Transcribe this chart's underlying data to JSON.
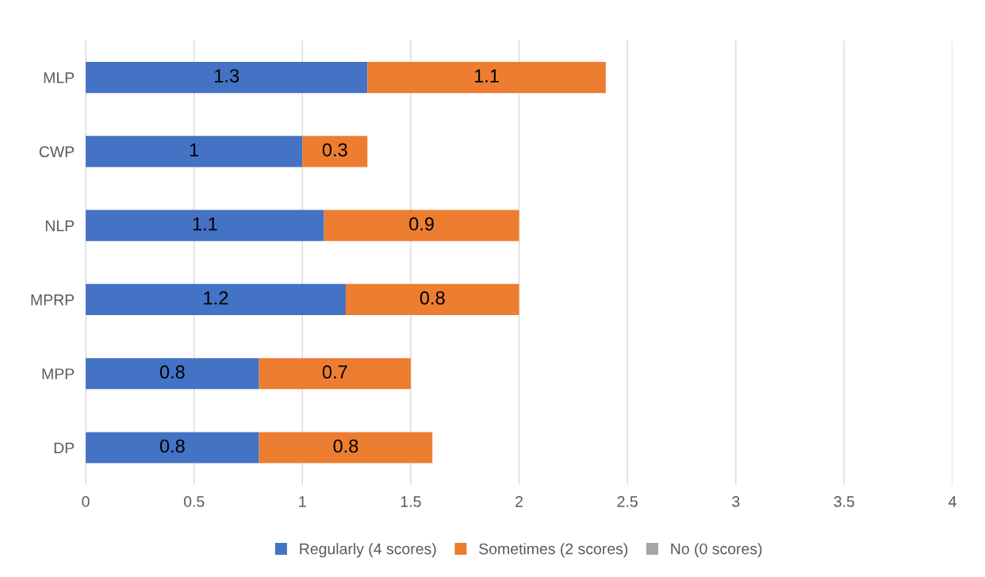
{
  "chart_data": {
    "type": "bar",
    "orientation": "horizontal",
    "stacked": true,
    "categories": [
      "MLP",
      "CWP",
      "NLP",
      "MPRP",
      "MPP",
      "DP"
    ],
    "series": [
      {
        "name": "Regularly (4 scores)",
        "color": "#4472c4",
        "values": [
          1.3,
          1,
          1.1,
          1.2,
          0.8,
          0.8
        ],
        "value_labels": [
          "1.3",
          "1",
          "1.1",
          "1.2",
          "0.8",
          "0.8"
        ]
      },
      {
        "name": "Sometimes (2 scores)",
        "color": "#ed7d31",
        "values": [
          1.1,
          0.3,
          0.9,
          0.8,
          0.7,
          0.8
        ],
        "value_labels": [
          "1.1",
          "0.3",
          "0.9",
          "0.8",
          "0.7",
          "0.8"
        ]
      },
      {
        "name": "No (0 scores)",
        "color": "#a5a5a5",
        "values": [
          0,
          0,
          0,
          0,
          0,
          0
        ],
        "value_labels": [
          null,
          null,
          null,
          null,
          null,
          null
        ]
      }
    ],
    "xlim": [
      0,
      4
    ],
    "xticks": [
      0,
      0.5,
      1,
      1.5,
      2,
      2.5,
      3,
      3.5,
      4
    ],
    "grid": "x",
    "legend": "bottom"
  }
}
